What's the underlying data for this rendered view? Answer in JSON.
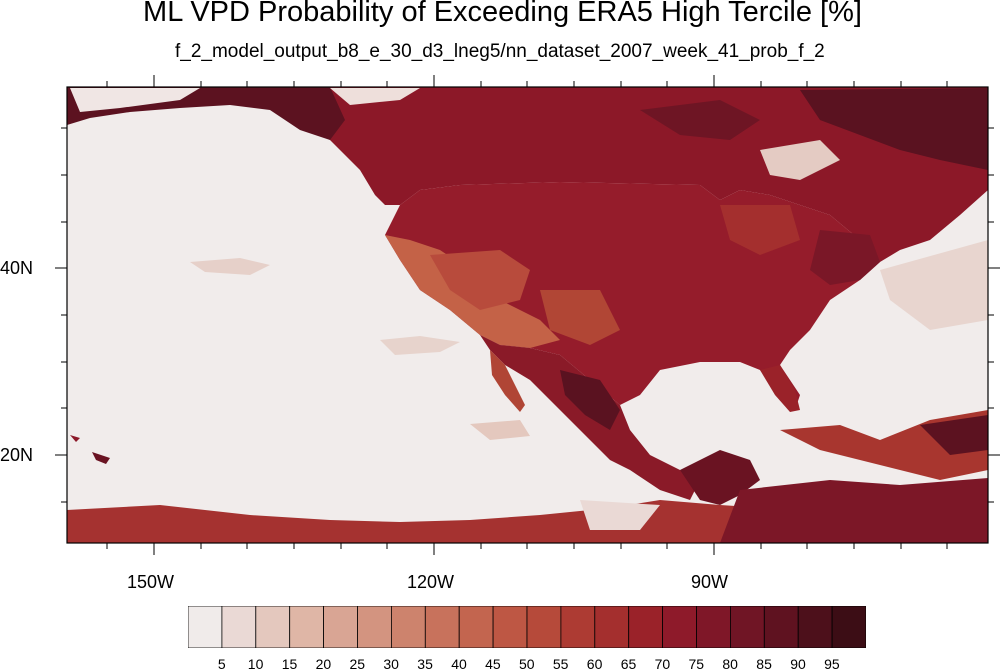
{
  "title": "ML VPD Probability of Exceeding ERA5 High Tercile [%]",
  "subtitle": "f_2_model_output_b8_e_30_d3_lneg5/nn_dataset_2007_week_41_prob_f_2",
  "map": {
    "lat_labels": [
      "40N",
      "20N"
    ],
    "lon_labels": [
      "150W",
      "120W",
      "90W"
    ]
  },
  "legend": {
    "labels": [
      "5",
      "10",
      "15",
      "20",
      "25",
      "30",
      "35",
      "40",
      "45",
      "50",
      "55",
      "60",
      "65",
      "70",
      "75",
      "80",
      "85",
      "90",
      "95"
    ],
    "colors": [
      "#f0ebea",
      "#ead9d5",
      "#e4c8be",
      "#dfb6a6",
      "#d9a594",
      "#d39480",
      "#cd836d",
      "#c8725c",
      "#c3654f",
      "#be5744",
      "#b64a3a",
      "#ad3b33",
      "#a42f2e",
      "#9a2229",
      "#8e1a2a",
      "#7f1728",
      "#701525",
      "#5f1220",
      "#4d101b",
      "#3c0d15"
    ]
  },
  "colors": {
    "ocean": "#f1eceb",
    "land_high": "#981c2a",
    "land_very_high": "#6a1322"
  }
}
